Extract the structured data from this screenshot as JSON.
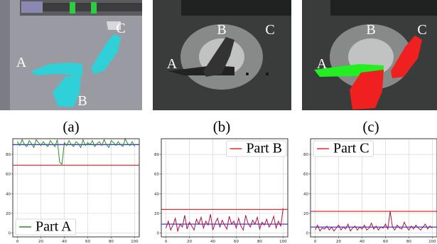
{
  "panels": [
    {
      "caption": "(a)",
      "labels": [
        "A",
        "B",
        "C"
      ]
    },
    {
      "caption": "(b)",
      "labels": [
        "A",
        "B",
        "C"
      ]
    },
    {
      "caption": "(c)",
      "labels": [
        "A",
        "B",
        "C"
      ]
    }
  ],
  "chart_data": [
    {
      "type": "line",
      "legend": "lower left",
      "grid": true,
      "x": [
        0,
        2,
        4,
        6,
        8,
        10,
        12,
        14,
        16,
        18,
        20,
        22,
        24,
        26,
        28,
        30,
        32,
        34,
        36,
        38,
        40,
        42,
        44,
        46,
        48,
        50,
        52,
        54,
        56,
        58,
        60,
        62,
        64,
        66,
        68,
        70,
        72,
        74,
        76,
        78,
        80,
        82,
        84,
        86,
        88,
        90,
        92,
        94,
        96,
        98,
        100
      ],
      "series": [
        {
          "name": "Part A",
          "color": "#2e8b2e",
          "values": [
            93,
            89,
            95,
            90,
            88,
            94,
            91,
            87,
            95,
            92,
            89,
            93,
            90,
            88,
            94,
            91,
            88,
            95,
            72,
            70,
            92,
            89,
            94,
            90,
            88,
            93,
            91,
            87,
            95,
            89,
            92,
            90,
            94,
            88,
            91,
            93,
            89,
            95,
            90,
            87,
            94,
            92,
            89,
            93,
            90,
            88,
            96,
            91,
            89,
            93,
            88
          ]
        }
      ],
      "hlines": [
        {
          "value": 90,
          "color": "#2a2ac0"
        },
        {
          "value": 69,
          "color": "#e03030"
        }
      ],
      "xlim": [
        -4,
        104
      ],
      "ylim": [
        -4,
        96
      ],
      "xticks": [
        0,
        20,
        40,
        60,
        80,
        100
      ],
      "yticks": [
        0,
        20,
        40,
        60,
        80
      ]
    },
    {
      "type": "line",
      "legend": "upper right",
      "grid": true,
      "x": [
        0,
        2,
        4,
        6,
        8,
        10,
        12,
        14,
        16,
        18,
        20,
        22,
        24,
        26,
        28,
        30,
        32,
        34,
        36,
        38,
        40,
        42,
        44,
        46,
        48,
        50,
        52,
        54,
        56,
        58,
        60,
        62,
        64,
        66,
        68,
        70,
        72,
        74,
        76,
        78,
        80,
        82,
        84,
        86,
        88,
        90,
        92,
        94,
        96,
        98,
        100
      ],
      "series": [
        {
          "name": "Part B",
          "color": "#b01040",
          "values": [
            5,
            12,
            3,
            8,
            15,
            2,
            9,
            6,
            18,
            4,
            11,
            7,
            3,
            14,
            9,
            16,
            5,
            12,
            8,
            19,
            3,
            10,
            15,
            6,
            13,
            8,
            4,
            17,
            9,
            12,
            5,
            15,
            7,
            3,
            18,
            10,
            6,
            13,
            9,
            16,
            4,
            11,
            8,
            14,
            6,
            10,
            17,
            5,
            12,
            7,
            25
          ]
        }
      ],
      "legend_color": "#e03030",
      "hlines": [
        {
          "value": 24,
          "color": "#e03030"
        },
        {
          "value": 9,
          "color": "#2a2ac0"
        }
      ],
      "xlim": [
        -4,
        104
      ],
      "ylim": [
        -4,
        96
      ],
      "xticks": [
        0,
        20,
        40,
        60,
        80,
        100
      ],
      "yticks": [
        0,
        20,
        40,
        60,
        80
      ]
    },
    {
      "type": "line",
      "legend": "upper left",
      "grid": true,
      "x": [
        0,
        2,
        4,
        6,
        8,
        10,
        12,
        14,
        16,
        18,
        20,
        22,
        24,
        26,
        28,
        30,
        32,
        34,
        36,
        38,
        40,
        42,
        44,
        46,
        48,
        50,
        52,
        54,
        56,
        58,
        60,
        62,
        64,
        66,
        68,
        70,
        72,
        74,
        76,
        78,
        80,
        82,
        84,
        86,
        88,
        90,
        92,
        94,
        96,
        98,
        100
      ],
      "series": [
        {
          "name": "Part C",
          "color": "#b01040",
          "values": [
            3,
            8,
            2,
            5,
            4,
            7,
            3,
            6,
            2,
            5,
            8,
            3,
            6,
            4,
            9,
            2,
            5,
            7,
            3,
            6,
            4,
            8,
            3,
            5,
            10,
            4,
            7,
            3,
            6,
            5,
            9,
            4,
            22,
            6,
            3,
            8,
            5,
            4,
            11,
            6,
            3,
            7,
            4,
            8,
            5,
            3,
            6,
            9,
            4,
            7,
            5
          ]
        }
      ],
      "legend_color": "#e03030",
      "hlines": [
        {
          "value": 22,
          "color": "#e03030"
        },
        {
          "value": 6,
          "color": "#2a2ac0"
        }
      ],
      "xlim": [
        -4,
        104
      ],
      "ylim": [
        -4,
        96
      ],
      "xticks": [
        0,
        20,
        40,
        60,
        80,
        100
      ],
      "yticks": [
        0,
        20,
        40,
        60,
        80
      ]
    }
  ]
}
